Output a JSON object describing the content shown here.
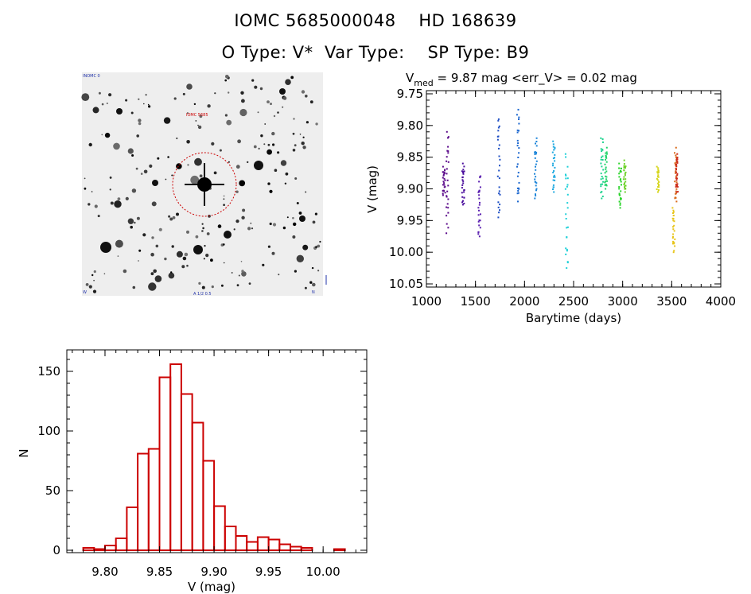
{
  "header": {
    "title_line1": "IOMC 5685000048    HD 168639",
    "title_line2": "O Type: V*  Var Type:    SP Type: B9"
  },
  "thumbnail": {
    "top_left_text": "INOMC 0",
    "target_label": "IOMC 5685",
    "bottom_center_text": "A 1/2 0.5",
    "bottom_left_text": "W",
    "bottom_right_text": "N",
    "colors": {
      "background": "#eeeeee",
      "stars": "#111111",
      "circle": "#cc0000"
    }
  },
  "chart_data": [
    {
      "id": "lightcurve",
      "type": "scatter",
      "title_main": "V",
      "title_sub": "med",
      "title_rest": " = 9.87 mag <err_V> = 0.02 mag",
      "xlabel": "Barytime (days)",
      "ylabel": "V (mag)",
      "xlim": [
        1000,
        4000
      ],
      "ylim": [
        10.055,
        9.745
      ],
      "xticks": [
        1000,
        1500,
        2000,
        2500,
        3000,
        3500,
        4000
      ],
      "yticks": [
        9.75,
        9.8,
        9.85,
        9.9,
        9.95,
        10.0,
        10.05
      ],
      "xtick_labels": [
        "1000",
        "1500",
        "2000",
        "2500",
        "3000",
        "3500",
        "4000"
      ],
      "ytick_labels": [
        "9.75",
        "9.80",
        "9.85",
        "9.90",
        "9.95",
        "10.00",
        "10.05"
      ],
      "series": [
        {
          "x": 1180,
          "color": "#5b0a8a",
          "ymin": 9.865,
          "ymax": 9.91
        },
        {
          "x": 1215,
          "color": "#5b0a8a",
          "ymin": 9.81,
          "ymax": 9.97
        },
        {
          "x": 1375,
          "color": "#4a0d9c",
          "ymin": 9.86,
          "ymax": 9.925
        },
        {
          "x": 1540,
          "color": "#5a1fb0",
          "ymin": 9.88,
          "ymax": 9.975
        },
        {
          "x": 1740,
          "color": "#1f4fc4",
          "ymin": 9.79,
          "ymax": 9.945
        },
        {
          "x": 1935,
          "color": "#1a66cf",
          "ymin": 9.775,
          "ymax": 9.92
        },
        {
          "x": 2115,
          "color": "#1f86d9",
          "ymin": 9.82,
          "ymax": 9.915
        },
        {
          "x": 2300,
          "color": "#1fa9e0",
          "ymin": 9.825,
          "ymax": 9.905
        },
        {
          "x": 2430,
          "color": "#1fd0d8",
          "ymin": 9.845,
          "ymax": 10.025
        },
        {
          "x": 2790,
          "color": "#1fd38f",
          "ymin": 9.82,
          "ymax": 9.915
        },
        {
          "x": 2830,
          "color": "#22d46a",
          "ymin": 9.835,
          "ymax": 9.9
        },
        {
          "x": 2975,
          "color": "#2ad42a",
          "ymin": 9.86,
          "ymax": 9.93
        },
        {
          "x": 3020,
          "color": "#6fd12a",
          "ymin": 9.855,
          "ymax": 9.905
        },
        {
          "x": 3360,
          "color": "#d6d61f",
          "ymin": 9.865,
          "ymax": 9.905
        },
        {
          "x": 3520,
          "color": "#e8c51a",
          "ymin": 9.93,
          "ymax": 10.0
        },
        {
          "x": 3540,
          "color": "#d96a1a",
          "ymin": 9.835,
          "ymax": 9.92
        },
        {
          "x": 3555,
          "color": "#cc2a1a",
          "ymin": 9.845,
          "ymax": 9.905
        }
      ]
    },
    {
      "id": "histogram",
      "type": "bar",
      "xlabel": "V (mag)",
      "ylabel": "N",
      "xlim": [
        9.765,
        10.04
      ],
      "ylim": [
        -2,
        168
      ],
      "xticks": [
        9.8,
        9.85,
        9.9,
        9.95,
        10.0
      ],
      "yticks": [
        0,
        50,
        100,
        150
      ],
      "xtick_labels": [
        "9.80",
        "9.85",
        "9.90",
        "9.95",
        "10.00"
      ],
      "ytick_labels": [
        "0",
        "50",
        "100",
        "150"
      ],
      "bin_width": 0.01,
      "bin_starts": [
        9.78,
        9.79,
        9.8,
        9.81,
        9.82,
        9.83,
        9.84,
        9.85,
        9.86,
        9.87,
        9.88,
        9.89,
        9.9,
        9.91,
        9.92,
        9.93,
        9.94,
        9.95,
        9.96,
        9.97,
        9.98,
        9.99,
        10.0,
        10.01,
        10.02
      ],
      "values": [
        2,
        1,
        4,
        10,
        36,
        81,
        85,
        145,
        156,
        131,
        107,
        75,
        37,
        20,
        12,
        7,
        11,
        9,
        5,
        3,
        2,
        0,
        0,
        1,
        0
      ],
      "color": "#cc0000"
    }
  ]
}
